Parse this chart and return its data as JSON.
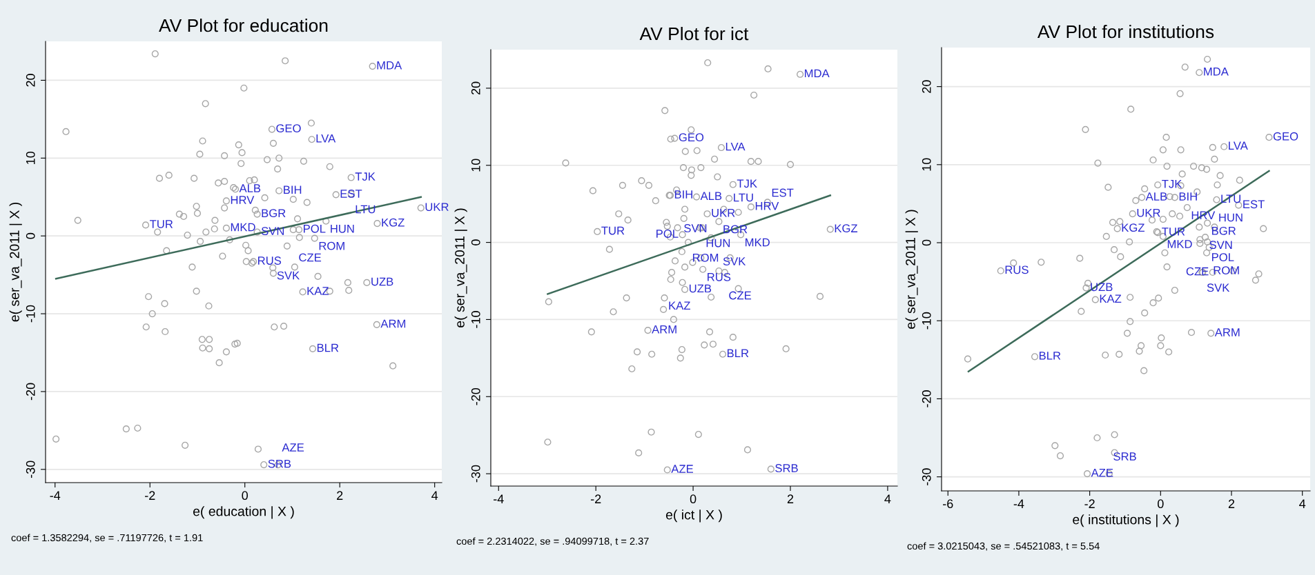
{
  "chart_data": [
    {
      "type": "scatter",
      "title": "AV Plot for education",
      "xlabel": "e( education | X )",
      "ylabel": "e( ser_va_2011 | X )",
      "xlim": [
        -4.2,
        4.15
      ],
      "ylim": [
        -31.7,
        25
      ],
      "xticks": [
        {
          "value": -4,
          "label": "-4"
        },
        {
          "value": -2,
          "label": "-2"
        },
        0,
        2,
        4
      ],
      "yticks": [
        {
          "value": -30,
          "label": "-30"
        },
        {
          "value": -20,
          "label": "-20"
        },
        {
          "value": -10,
          "label": "-10"
        },
        0,
        10,
        20
      ],
      "grid": "y",
      "legend": false,
      "series": [
        {
          "marker": "circle",
          "color": "#a6a6a6",
          "x": [
            2.69,
            0.57,
            1.41,
            2.24,
            1.92,
            2.24,
            0.72,
            -0.2,
            -0.39,
            0.26,
            3.71,
            -2.09,
            -0.39,
            0.26,
            1.14,
            1.71,
            1.47,
            2.79,
            0.18,
            0.59,
            1.05,
            1.22,
            2.57,
            2.78,
            1.43,
            0.4,
            0.7,
            -1.89,
            0.85,
            -0.02,
            -0.83,
            -3.77,
            1.4,
            0.6,
            -0.89,
            -0.13,
            -0.95,
            -0.43,
            -0.06,
            0.47,
            0.72,
            1.24,
            -0.08,
            0.69,
            1.79,
            -1.8,
            -1.6,
            -1.07,
            -0.56,
            -0.43,
            0.1,
            0.2,
            -0.24,
            0.42,
            1.02,
            1.31,
            -0.43,
            0.22,
            -1.38,
            -1.29,
            -1.02,
            -1.0,
            -3.52,
            -0.63,
            -0.64,
            1.11,
            -1.21,
            -0.82,
            -0.94,
            -1.84,
            -0.32,
            1.02,
            1.15,
            0.89,
            0.02,
            0.07,
            -1.65,
            -0.47,
            0.03,
            0.15,
            -1.11,
            0.6,
            1.54,
            2.17,
            2.19,
            1.79,
            -1.02,
            -2.03,
            -0.76,
            -1.69,
            -1.95,
            -2.08,
            -1.68,
            0.62,
            0.82,
            -0.9,
            -0.75,
            -0.89,
            -0.75,
            -0.39,
            -0.21,
            -0.16,
            -0.54,
            3.12,
            -3.98,
            -2.5,
            -2.26,
            -1.26,
            0.28
          ],
          "values": [
            21.8,
            13.7,
            12.4,
            7.5,
            5.3,
            5.4,
            5.8,
            6.0,
            4.5,
            2.8,
            3.6,
            1.4,
            1.0,
            0.5,
            0.8,
            1.9,
            -0.3,
            1.6,
            -3.3,
            -4.1,
            -4.0,
            -7.2,
            -6.0,
            -11.4,
            -14.5,
            -29.4,
            -29.4,
            23.4,
            22.5,
            19.0,
            17.0,
            13.4,
            14.5,
            11.9,
            12.2,
            11.7,
            10.5,
            10.3,
            10.7,
            9.8,
            10.0,
            9.6,
            9.3,
            8.6,
            8.9,
            7.4,
            7.8,
            7.4,
            6.8,
            7.0,
            7.1,
            7.2,
            6.2,
            4.9,
            4.7,
            4.3,
            3.6,
            3.3,
            2.8,
            2.5,
            3.8,
            2.9,
            2.0,
            2.0,
            0.9,
            2.2,
            0.1,
            0.5,
            -0.7,
            0.5,
            -0.5,
            0.8,
            -0.2,
            -1.3,
            -1.2,
            -1.9,
            -1.9,
            -2.6,
            -3.3,
            -3.5,
            -4.0,
            -4.8,
            -5.2,
            -6.0,
            -7.0,
            -7.1,
            -7.1,
            -7.8,
            -9.0,
            -8.7,
            -10.0,
            -11.7,
            -12.3,
            -11.7,
            -11.6,
            -13.3,
            -13.3,
            -14.4,
            -14.5,
            -14.9,
            -13.9,
            -13.8,
            -16.3,
            -16.7,
            -26.1,
            -24.8,
            -24.7,
            -26.9,
            -27.4
          ]
        },
        {
          "type": "line",
          "color": "#3d6b5a",
          "x": [
            -3.98,
            3.71
          ],
          "values": [
            -5.5,
            5.0
          ]
        }
      ],
      "annotations": [
        {
          "text": "MDA",
          "x": 2.69,
          "y": 21.8
        },
        {
          "text": "GEO",
          "x": 0.57,
          "y": 13.7
        },
        {
          "text": "LVA",
          "x": 1.41,
          "y": 12.4
        },
        {
          "text": "TJK",
          "x": 2.24,
          "y": 7.5
        },
        {
          "text": "EST",
          "x": 1.92,
          "y": 5.3
        },
        {
          "text": "LTU",
          "x": 2.24,
          "y": 5.4
        },
        {
          "text": "BIH",
          "x": 0.72,
          "y": 5.8
        },
        {
          "text": "ALB",
          "x": -0.2,
          "y": 6.0
        },
        {
          "text": "HRV",
          "x": -0.39,
          "y": 4.5
        },
        {
          "text": "BGR",
          "x": 0.26,
          "y": 2.8
        },
        {
          "text": "UKR",
          "x": 3.71,
          "y": 3.6
        },
        {
          "text": "TUR",
          "x": -2.09,
          "y": 1.4
        },
        {
          "text": "MKD",
          "x": -0.39,
          "y": 1.0
        },
        {
          "text": "SVN",
          "x": 0.26,
          "y": 0.5
        },
        {
          "text": "POL",
          "x": 1.14,
          "y": 0.8
        },
        {
          "text": "HUN",
          "x": 1.71,
          "y": 1.9
        },
        {
          "text": "ROM",
          "x": 1.47,
          "y": -0.3
        },
        {
          "text": "KGZ",
          "x": 2.79,
          "y": 1.6
        },
        {
          "text": "RUS",
          "x": 0.18,
          "y": -3.3
        },
        {
          "text": "SVK",
          "x": 0.59,
          "y": -4.1
        },
        {
          "text": "CZE",
          "x": 1.05,
          "y": -4.0
        },
        {
          "text": "KAZ",
          "x": 1.22,
          "y": -7.2
        },
        {
          "text": "UZB",
          "x": 2.57,
          "y": -6.0
        },
        {
          "text": "ARM",
          "x": 2.78,
          "y": -11.4
        },
        {
          "text": "BLR",
          "x": 1.43,
          "y": -14.5
        },
        {
          "text": "SRB",
          "x": 0.4,
          "y": -29.4
        },
        {
          "text": "AZE",
          "x": 0.7,
          "y": -29.4
        },
        "coef = 1.3582294, se = .71197726, t = 1.91"
      ]
    },
    {
      "type": "scatter",
      "title": "AV Plot for ict",
      "xlabel": "e( ict | X )",
      "ylabel": "e( ser_va_2011 | X )",
      "xlim": [
        -4.16,
        4.2
      ],
      "ylim": [
        -31.6,
        25
      ],
      "xticks": [
        {
          "value": -4,
          "label": "-4"
        },
        {
          "value": -2,
          "label": "-2"
        },
        0,
        2,
        4
      ],
      "yticks": [
        {
          "value": -30,
          "label": "-30"
        },
        {
          "value": -20,
          "label": "-20"
        },
        {
          "value": -10,
          "label": "-10"
        },
        0,
        10,
        20
      ],
      "grid": "y",
      "legend": false,
      "series": [
        {
          "marker": "circle",
          "color": "#a6a6a6",
          "x": [
            2.2,
            -0.38,
            0.58,
            0.82,
            0.74,
            1.19,
            1.53,
            -0.47,
            0.07,
            0.29,
            0.53,
            0.18,
            0.37,
            -0.22,
            -0.1,
            0.98,
            2.82,
            -1.97,
            0.2,
            0.53,
            0.65,
            -0.17,
            -0.59,
            -0.93,
            0.61,
            -0.53,
            1.6,
            0.3,
            1.54,
            1.25,
            -0.58,
            -0.04,
            -0.46,
            -0.16,
            0.08,
            -2.62,
            0.44,
            1.19,
            1.34,
            2.0,
            -0.2,
            -0.03,
            0.16,
            -0.04,
            0.5,
            -2.06,
            -1.45,
            -1.06,
            -0.91,
            -0.77,
            -0.34,
            -0.49,
            -0.17,
            0.63,
            0.93,
            -1.53,
            -1.34,
            -0.55,
            -0.19,
            -0.32,
            -0.53,
            -0.47,
            0.14,
            -1.72,
            -0.23,
            0.16,
            0.76,
            -0.37,
            -0.01,
            -0.17,
            -0.44,
            -0.46,
            -0.22,
            0.93,
            0.37,
            -1.37,
            -2.97,
            2.61,
            -1.64,
            -0.61,
            -0.4,
            -2.09,
            0.34,
            0.82,
            0.23,
            0.41,
            1.91,
            -0.23,
            -1.15,
            -0.85,
            -0.26,
            -1.26,
            -2.99,
            -0.86,
            0.11,
            -1.12,
            1.12
          ],
          "values": [
            21.8,
            13.5,
            12.3,
            7.5,
            5.7,
            4.6,
            5.2,
            6.1,
            5.9,
            3.7,
            2.7,
            1.9,
            0.6,
            1.0,
            0.0,
            1.0,
            1.7,
            1.4,
            -3.5,
            -3.7,
            -3.9,
            -6.1,
            -7.2,
            -11.4,
            -14.5,
            -29.5,
            -29.4,
            23.3,
            22.5,
            19.1,
            17.1,
            14.6,
            13.4,
            11.8,
            11.9,
            10.3,
            10.8,
            10.5,
            10.5,
            10.1,
            9.7,
            9.4,
            9.7,
            8.7,
            8.5,
            6.7,
            7.4,
            8.0,
            7.4,
            5.4,
            6.8,
            6.1,
            4.3,
            4.3,
            3.9,
            3.7,
            2.9,
            2.6,
            3.1,
            1.9,
            2.1,
            0.7,
            1.9,
            -0.9,
            -1.2,
            -2.0,
            -2.0,
            -2.4,
            -2.6,
            -3.2,
            -3.9,
            -4.8,
            -5.2,
            -6.0,
            -7.1,
            -7.2,
            -7.7,
            -7.0,
            -9.0,
            -8.7,
            -10.0,
            -11.6,
            -11.6,
            -12.3,
            -13.3,
            -13.2,
            -13.8,
            -13.9,
            -14.2,
            -14.5,
            -15.0,
            -16.4,
            -25.9,
            -24.6,
            -24.9,
            -27.3,
            -26.9
          ]
        },
        {
          "type": "line",
          "color": "#3d6b5a",
          "x": [
            -2.99,
            2.82
          ],
          "values": [
            -6.7,
            6.1
          ]
        }
      ],
      "annotations": [
        {
          "text": "MDA",
          "x": 2.2,
          "y": 21.8
        },
        {
          "text": "GEO",
          "x": -0.38,
          "y": 13.5
        },
        {
          "text": "LVA",
          "x": 0.58,
          "y": 12.3
        },
        {
          "text": "TJK",
          "x": 0.82,
          "y": 7.5
        },
        {
          "text": "LTU",
          "x": 0.74,
          "y": 5.7
        },
        {
          "text": "HRV",
          "x": 1.19,
          "y": 4.6
        },
        {
          "text": "EST",
          "x": 1.53,
          "y": 5.2
        },
        {
          "text": "BIH",
          "x": -0.47,
          "y": 6.1
        },
        {
          "text": "ALB",
          "x": 0.07,
          "y": 5.9
        },
        {
          "text": "UKR",
          "x": 0.29,
          "y": 3.7
        },
        {
          "text": "BGR",
          "x": 0.53,
          "y": 2.7
        },
        {
          "text": "HUN",
          "x": 0.18,
          "y": 1.9
        },
        {
          "text": "SVN",
          "x": 0.37,
          "y": 0.6
        },
        {
          "text": "POL",
          "x": -0.22,
          "y": 1.0
        },
        {
          "text": "ROM",
          "x": -0.1,
          "y": 0.0
        },
        {
          "text": "MKD",
          "x": 0.98,
          "y": 1.0
        },
        {
          "text": "KGZ",
          "x": 2.82,
          "y": 1.7
        },
        {
          "text": "TUR",
          "x": -1.97,
          "y": 1.4
        },
        {
          "text": "RUS",
          "x": 0.2,
          "y": -3.5
        },
        {
          "text": "SVK",
          "x": 0.53,
          "y": -3.7
        },
        {
          "text": "CZE",
          "x": 0.65,
          "y": -3.9
        },
        {
          "text": "UZB",
          "x": -0.17,
          "y": -6.1
        },
        {
          "text": "KAZ",
          "x": -0.59,
          "y": -7.2
        },
        {
          "text": "ARM",
          "x": -0.93,
          "y": -11.4
        },
        {
          "text": "BLR",
          "x": 0.61,
          "y": -14.5
        },
        {
          "text": "AZE",
          "x": -0.53,
          "y": -29.5
        },
        {
          "text": "SRB",
          "x": 1.6,
          "y": -29.4
        },
        "coef = 2.2314022, se = .94099718, t = 2.37"
      ]
    },
    {
      "type": "scatter",
      "title": "AV Plot for institutions",
      "xlabel": "e( institutions | X )",
      "ylabel": "e( ser_va_2011 | X )",
      "xlim": [
        -6.18,
        4.22
      ],
      "ylim": [
        -31.8,
        25
      ],
      "xticks": [
        {
          "value": -6,
          "label": "-6"
        },
        {
          "value": -4,
          "label": "-4"
        },
        {
          "value": -2,
          "label": "-2"
        },
        0,
        2,
        4
      ],
      "yticks": [
        {
          "value": -30,
          "label": "-30"
        },
        {
          "value": -20,
          "label": "-20"
        },
        {
          "value": -10,
          "label": "-10"
        },
        0,
        10,
        20
      ],
      "grid": "y",
      "legend": false,
      "series": [
        {
          "marker": "circle",
          "color": "#a6a6a6",
          "x": [
            1.09,
            3.06,
            1.79,
            -0.08,
            -0.53,
            0.4,
            0.75,
            1.58,
            2.2,
            -0.79,
            -1.22,
            -0.08,
            0.07,
            1.32,
            1.52,
            1.26,
            1.32,
            1.37,
            -4.51,
            1.19,
            1.47,
            -2.1,
            -1.84,
            1.42,
            -3.55,
            -2.07,
            -1.45,
            1.32,
            0.69,
            0.55,
            -0.84,
            -2.12,
            0.16,
            0.07,
            0.57,
            1.47,
            1.52,
            -1.77,
            -0.21,
            0.18,
            0.93,
            1.16,
            1.3,
            0.61,
            1.68,
            2.23,
            -1.48,
            -0.45,
            0.57,
            1.03,
            1.6,
            -0.7,
            0.26,
            0.33,
            0.54,
            -0.24,
            0.07,
            -1.35,
            -1.15,
            -1.53,
            -0.88,
            -0.11,
            1.09,
            2.9,
            1.11,
            1.11,
            1.3,
            -1.31,
            -1.13,
            -2.28,
            -3.37,
            -4.15,
            0.12,
            0.18,
            1.17,
            2.04,
            2.77,
            2.68,
            -2.05,
            0.4,
            -0.86,
            -0.06,
            -0.21,
            -2.24,
            -0.45,
            -0.86,
            0.87,
            -0.94,
            0.02,
            0.0,
            -0.55,
            -0.6,
            0.23,
            -1.17,
            -1.56,
            -0.47,
            -5.44,
            -1.79,
            -1.3,
            -2.98,
            -2.83,
            -1.3
          ],
          "values": [
            21.8,
            13.5,
            12.3,
            7.4,
            5.8,
            5.8,
            4.5,
            5.5,
            4.8,
            3.7,
            1.8,
            1.3,
            0.8,
            2.5,
            2.0,
            0.7,
            0.1,
            -0.6,
            -3.6,
            -3.8,
            -3.8,
            -5.8,
            -7.3,
            -11.6,
            -14.6,
            -29.6,
            -29.6,
            23.5,
            22.5,
            19.1,
            17.1,
            14.5,
            13.5,
            11.9,
            11.9,
            12.2,
            10.7,
            10.2,
            10.6,
            9.8,
            9.8,
            9.6,
            9.4,
            8.8,
            8.6,
            8.0,
            7.1,
            6.9,
            7.3,
            6.5,
            7.4,
            5.4,
            5.9,
            3.7,
            3.4,
            2.9,
            3.0,
            2.6,
            2.7,
            0.8,
            0.1,
            1.4,
            2.0,
            1.8,
            0.4,
            -0.1,
            -1.3,
            -0.9,
            -1.8,
            -2.0,
            -2.5,
            -2.6,
            -1.3,
            -3.1,
            -3.8,
            -3.6,
            -4.0,
            -4.8,
            -5.2,
            -6.1,
            -7.0,
            -7.1,
            -7.7,
            -8.8,
            -9.0,
            -10.1,
            -11.5,
            -11.6,
            -12.2,
            -13.2,
            -13.2,
            -13.9,
            -14.0,
            -14.3,
            -14.4,
            -16.4,
            -14.9,
            -25.0,
            -24.6,
            -26.0,
            -27.3,
            -26.9
          ]
        },
        {
          "type": "line",
          "color": "#3d6b5a",
          "x": [
            -5.42,
            3.06
          ],
          "values": [
            -16.5,
            9.2
          ]
        }
      ],
      "annotations": [
        {
          "text": "MDA",
          "x": 1.09,
          "y": 21.8
        },
        {
          "text": "GEO",
          "x": 3.06,
          "y": 13.5
        },
        {
          "text": "LVA",
          "x": 1.79,
          "y": 12.3
        },
        {
          "text": "TJK",
          "x": -0.08,
          "y": 7.4
        },
        {
          "text": "ALB",
          "x": -0.53,
          "y": 5.8
        },
        {
          "text": "BIH",
          "x": 0.4,
          "y": 5.8
        },
        {
          "text": "HRV",
          "x": 0.75,
          "y": 4.5
        },
        {
          "text": "LTU",
          "x": 1.58,
          "y": 5.5
        },
        {
          "text": "EST",
          "x": 2.2,
          "y": 4.8
        },
        {
          "text": "UKR",
          "x": -0.79,
          "y": 3.7
        },
        {
          "text": "KGZ",
          "x": -1.22,
          "y": 1.8
        },
        {
          "text": "TUR",
          "x": -0.08,
          "y": 1.3
        },
        {
          "text": "MKD",
          "x": 0.07,
          "y": 0.8
        },
        {
          "text": "BGR",
          "x": 1.32,
          "y": 2.5
        },
        {
          "text": "HUN",
          "x": 1.52,
          "y": 2.0
        },
        {
          "text": "SVN",
          "x": 1.26,
          "y": 0.7
        },
        {
          "text": "POL",
          "x": 1.32,
          "y": 0.1
        },
        {
          "text": "ROM",
          "x": 1.37,
          "y": -0.6
        },
        {
          "text": "RUS",
          "x": -4.51,
          "y": -3.6
        },
        {
          "text": "SVK",
          "x": 1.19,
          "y": -3.8
        },
        {
          "text": "CZE",
          "x": 1.47,
          "y": -3.8
        },
        {
          "text": "UZB",
          "x": -2.1,
          "y": -5.8
        },
        {
          "text": "KAZ",
          "x": -1.84,
          "y": -7.3
        },
        {
          "text": "ARM",
          "x": 1.42,
          "y": -11.6
        },
        {
          "text": "BLR",
          "x": -3.55,
          "y": -14.6
        },
        {
          "text": "AZE",
          "x": -2.07,
          "y": -29.6
        },
        {
          "text": "SRB",
          "x": -1.45,
          "y": -29.6
        },
        "coef = 3.0215043, se = .54521083, t = 5.54"
      ]
    }
  ]
}
